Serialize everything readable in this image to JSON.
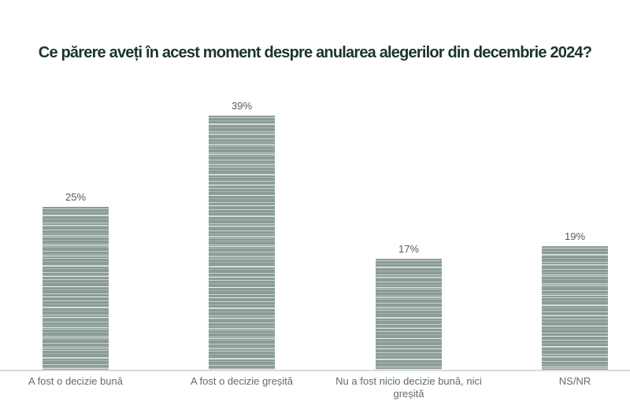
{
  "chart_data": {
    "type": "bar",
    "title": "Ce părere aveți în acest moment despre anularea alegerilor din decembrie 2024?",
    "categories": [
      "A fost o decizie bună",
      "A fost o decizie greșită",
      "Nu a fost nicio decizie bună, nici greșită",
      "NS/NR"
    ],
    "values": [
      25,
      39,
      17,
      19
    ],
    "value_labels": [
      "25%",
      "39%",
      "17%",
      "19%"
    ],
    "unit": "percent",
    "ylim": [
      0,
      40
    ],
    "grid": false,
    "legend": false,
    "xlabel": "",
    "ylabel": "",
    "bar_pattern": "horizontal-stripes",
    "colors": {
      "bar_fill": "#8b9c97",
      "bar_stripe_light": "#e8eeec",
      "title_text": "#1d3430",
      "value_label_text": "#58595b",
      "category_label_text": "#666a69",
      "axis_line": "#d9d9d9",
      "background": "#ffffff"
    }
  }
}
